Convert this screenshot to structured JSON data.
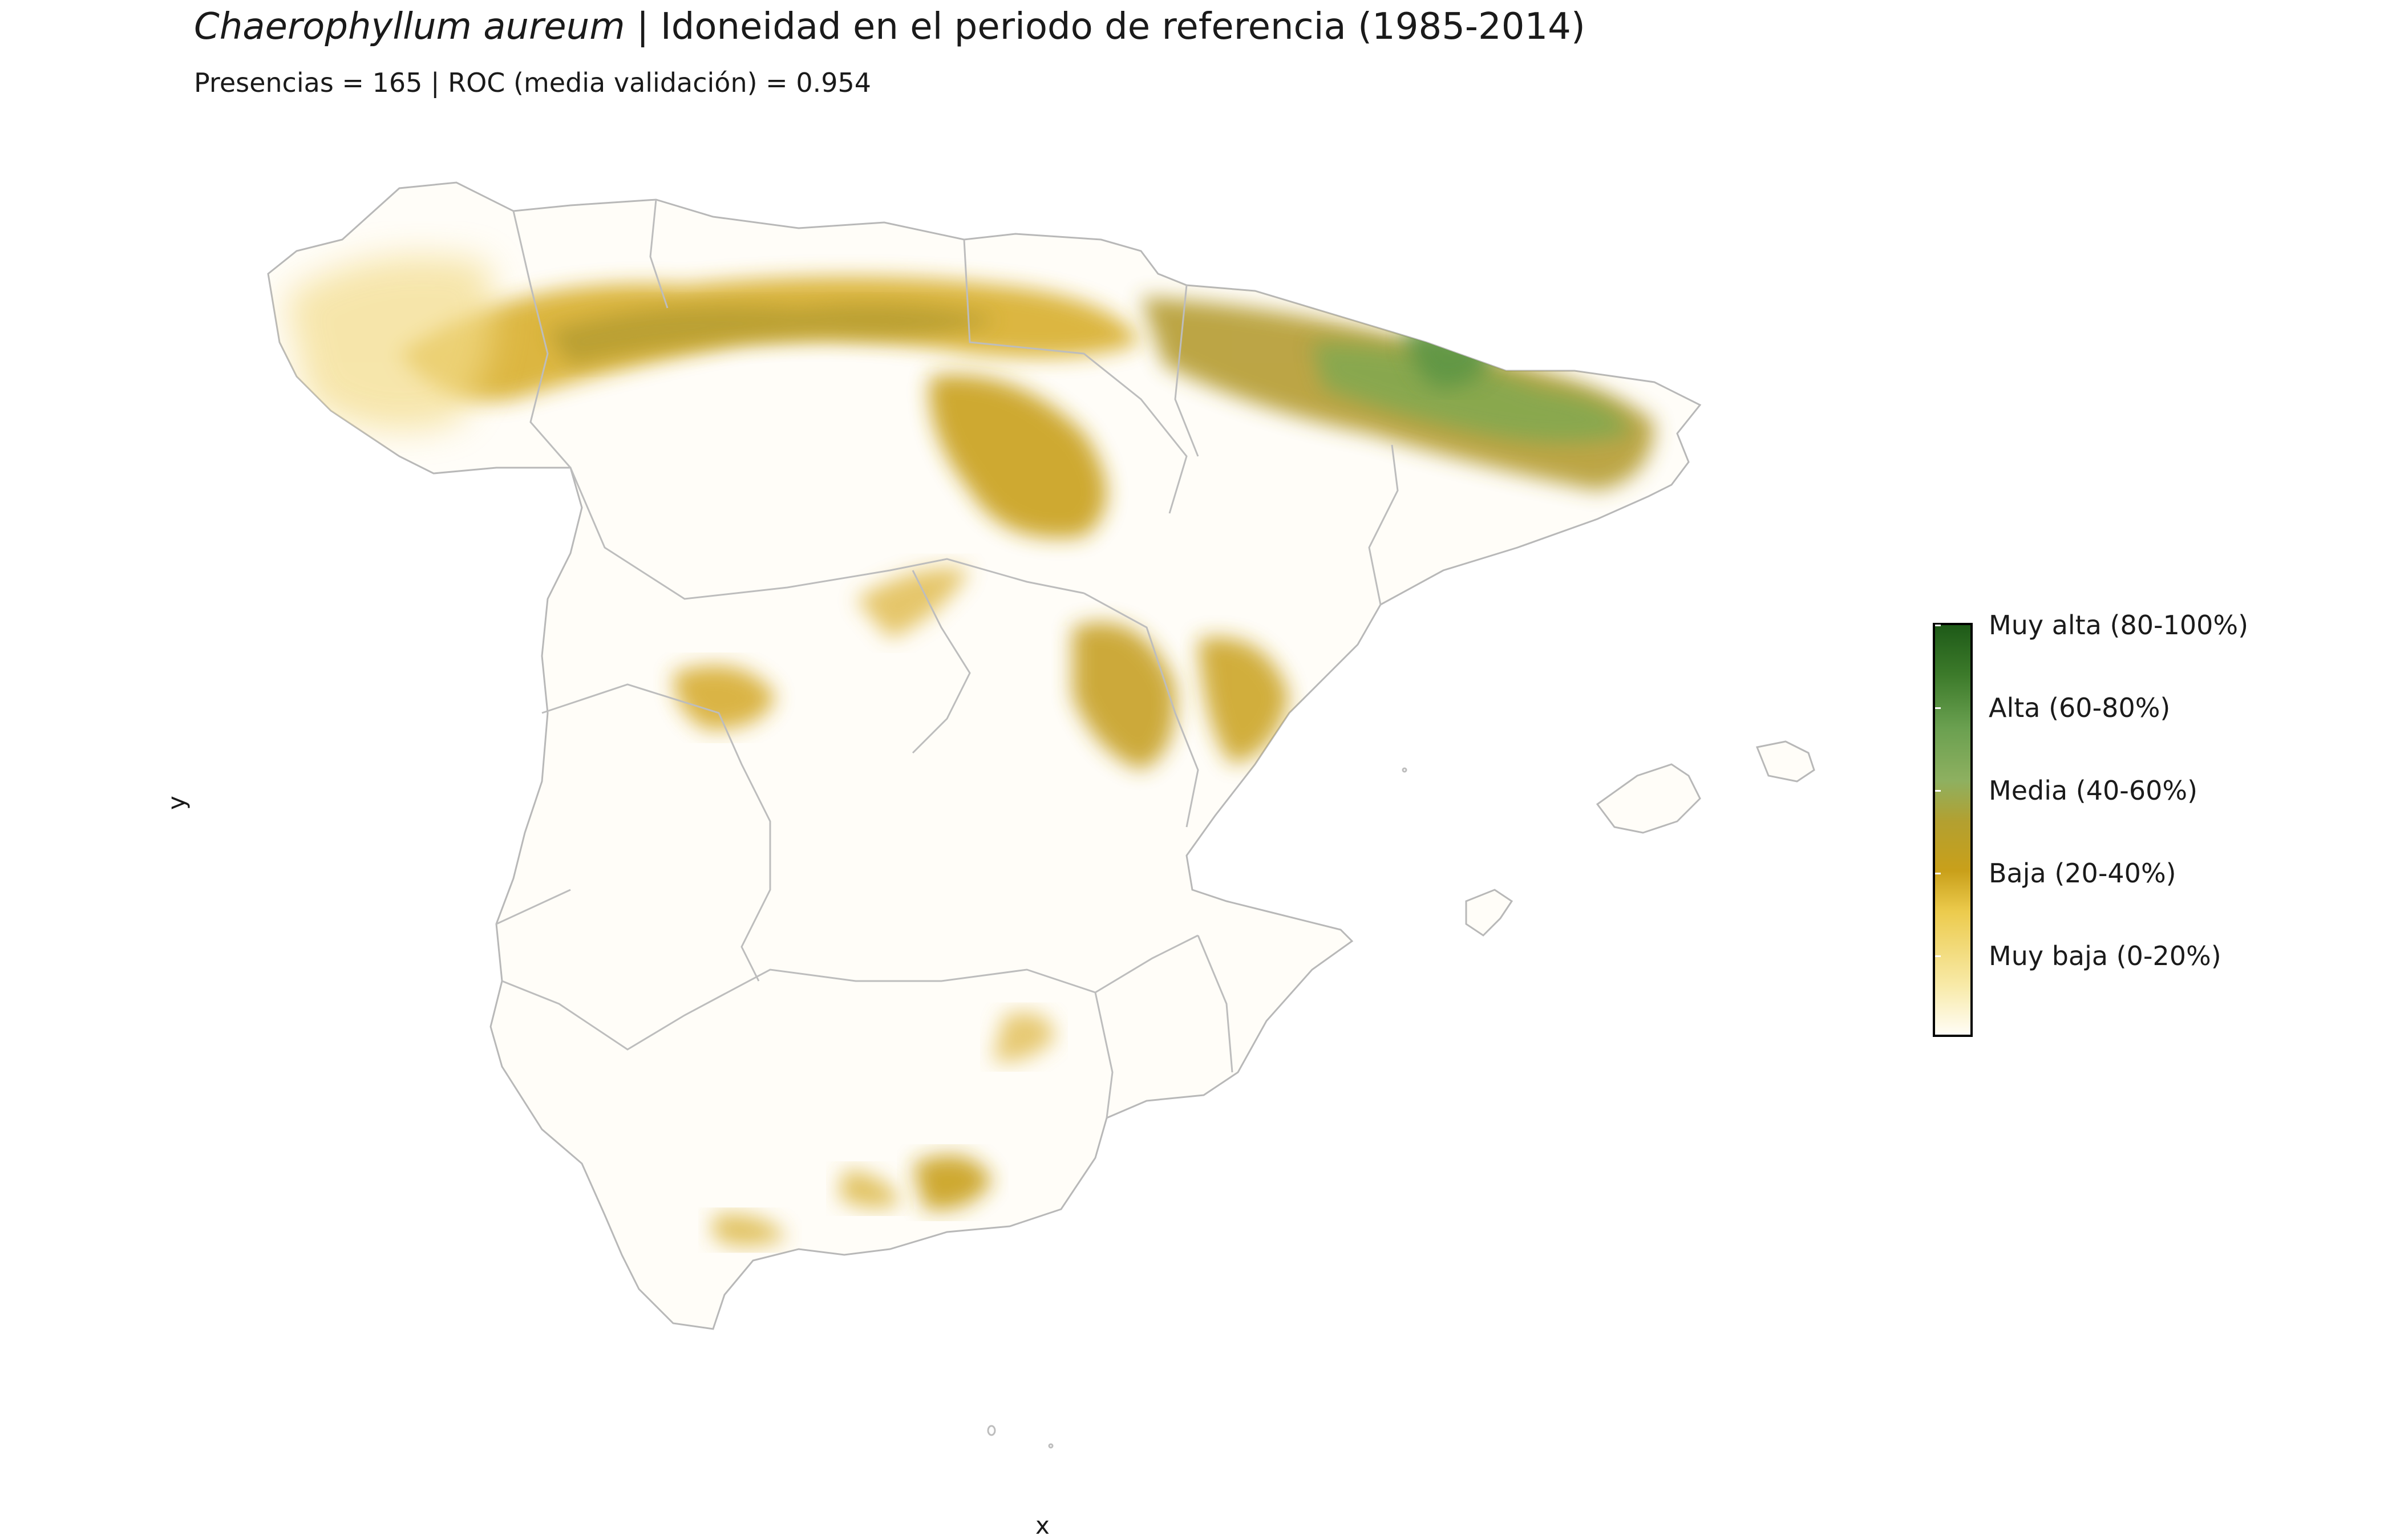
{
  "title": {
    "species": "Chaerophyllum aureum",
    "separator": " | ",
    "text": "Idoneidad en el periodo de referencia (1985-2014)"
  },
  "subtitle": "Presencias = 165  |  ROC (media validación) = 0.954",
  "axes": {
    "x_label": "x",
    "y_label": "y"
  },
  "legend": {
    "items": [
      {
        "label": "Muy alta (80-100%)",
        "color": "#1e5a18"
      },
      {
        "label": "Alta (60-80%)",
        "color": "#7aa85a"
      },
      {
        "label": "Media (40-60%)",
        "color": "#b39a2c"
      },
      {
        "label": "Baja (20-40%)",
        "color": "#d8ad2c"
      },
      {
        "label": "Muy baja (0-20%)",
        "color": "#fbf0c6"
      }
    ]
  },
  "colors": {
    "background": "#ffffff",
    "border": "#b8b8b8",
    "land_base": "#fffdf8"
  }
}
